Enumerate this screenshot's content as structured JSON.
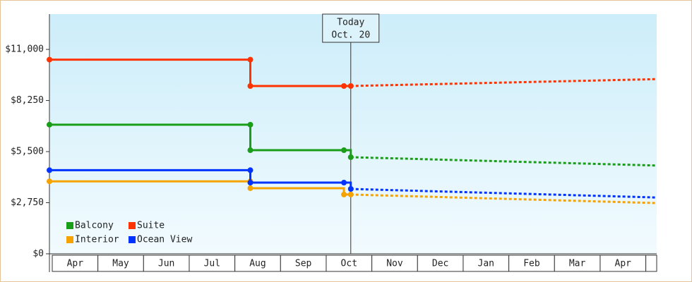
{
  "chart_data": {
    "type": "step-line",
    "categories": [
      "Apr",
      "May",
      "Jun",
      "Jul",
      "Aug",
      "Sep",
      "Oct",
      "Nov",
      "Dec",
      "Jan",
      "Feb",
      "Mar",
      "Apr",
      null
    ],
    "xlim": [
      0,
      13.3
    ],
    "ylim": [
      0,
      12900
    ],
    "yticks": [
      {
        "value": 0,
        "label": "$0"
      },
      {
        "value": 2750,
        "label": "$2,750"
      },
      {
        "value": 5500,
        "label": "$5,500"
      },
      {
        "value": 8250,
        "label": "$8,250"
      },
      {
        "value": 11000,
        "label": "$11,000"
      }
    ],
    "annotation": {
      "x": 6.6,
      "lines": [
        "Today",
        "Oct. 20"
      ]
    },
    "legend": "lower left",
    "forecast_x": [
      6.6,
      13.3
    ],
    "series": [
      {
        "name": "Balcony",
        "color": "#1a9e1a",
        "x": [
          0,
          4.4,
          4.4,
          6.45,
          6.6
        ],
        "values": [
          6950,
          6950,
          5575,
          5575,
          5200
        ],
        "forecast": [
          5200,
          4750
        ]
      },
      {
        "name": "Suite",
        "color": "#ff3300",
        "x": [
          0,
          4.4,
          4.4,
          6.45,
          6.6
        ],
        "values": [
          10450,
          10450,
          9030,
          9030,
          9030
        ],
        "forecast": [
          9030,
          9400
        ]
      },
      {
        "name": "Interior",
        "color": "#f5a300",
        "x": [
          0,
          4.4,
          4.4,
          6.45,
          6.6
        ],
        "values": [
          3900,
          3900,
          3530,
          3190,
          3190
        ],
        "forecast": [
          3190,
          2730
        ]
      },
      {
        "name": "Ocean View",
        "color": "#0033ff",
        "x": [
          0,
          4.4,
          4.4,
          6.45,
          6.6
        ],
        "values": [
          4500,
          4500,
          3830,
          3830,
          3490
        ],
        "forecast": [
          3490,
          3030
        ]
      }
    ]
  }
}
